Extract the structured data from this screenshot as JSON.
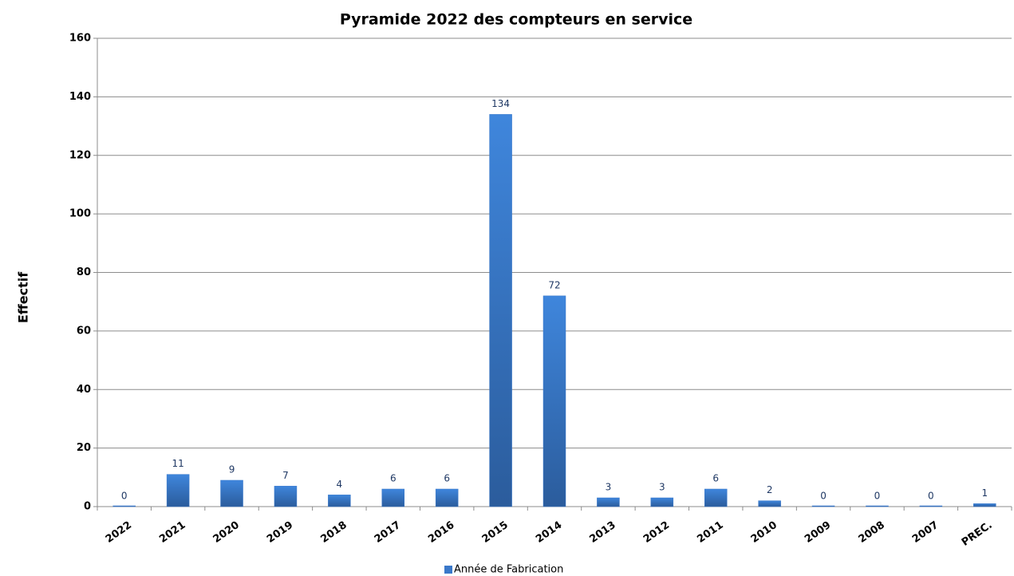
{
  "chart_data": {
    "type": "bar",
    "title": "Pyramide 2022 des compteurs en service",
    "y_label": "Effectif",
    "categories": [
      "2022",
      "2021",
      "2020",
      "2019",
      "2018",
      "2017",
      "2016",
      "2015",
      "2014",
      "2013",
      "2012",
      "2011",
      "2010",
      "2009",
      "2008",
      "2007",
      "PREC."
    ],
    "series": [
      {
        "name": "Année de Fabrication",
        "color": "#3a78c9",
        "values": [
          0,
          11,
          9,
          7,
          4,
          6,
          6,
          134,
          72,
          3,
          3,
          6,
          2,
          0,
          0,
          0,
          1
        ]
      }
    ],
    "ylim": [
      0,
      160
    ],
    "yticks": [
      0,
      20,
      40,
      60,
      80,
      100,
      120,
      140,
      160
    ],
    "grid": true,
    "legend": "bottom"
  }
}
